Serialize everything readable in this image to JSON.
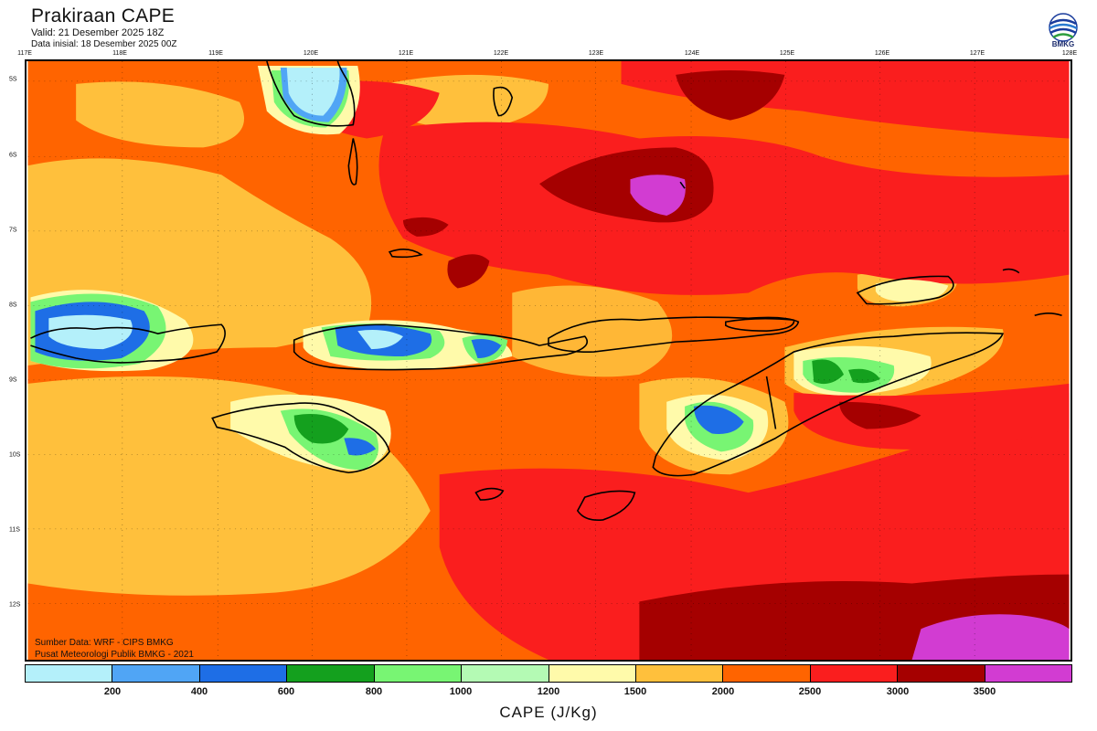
{
  "header": {
    "title": "Prakiraan CAPE",
    "valid": "Valid: 21 Desember 2025 18Z",
    "init": "Data inisial: 18 Desember 2025 00Z",
    "logo_text": "BMKG"
  },
  "axes": {
    "lon_labels": [
      "117E",
      "118E",
      "119E",
      "120E",
      "121E",
      "122E",
      "123E",
      "124E",
      "125E",
      "126E",
      "127E",
      "128E"
    ],
    "lat_labels": [
      "5S",
      "6S",
      "7S",
      "8S",
      "9S",
      "10S",
      "11S",
      "12S"
    ]
  },
  "credits": {
    "line1": "Sumber Data: WRF - CIPS BMKG",
    "line2": "Pusat Meteorologi Publik BMKG - 2021"
  },
  "legend": {
    "title": "CAPE (J/Kg)",
    "ticks": [
      "200",
      "400",
      "600",
      "800",
      "1000",
      "1200",
      "1500",
      "2000",
      "2500",
      "3000",
      "3500"
    ],
    "colors": [
      "#b4f0fa",
      "#50a5f5",
      "#1e6ee6",
      "#14a01e",
      "#78f573",
      "#b4fab4",
      "#fffaaa",
      "#ffc03c",
      "#ff6400",
      "#fa1e1e",
      "#a50000",
      "#d23cd2"
    ]
  },
  "map_colors": {
    "base_orange": "#ff6400",
    "red": "#fa1e1e",
    "dark_red": "#a50000",
    "magenta": "#d23cd2",
    "light_orange": "#ffc03c",
    "yellow": "#fffaaa",
    "pale_green": "#b4fab4",
    "green": "#78f573",
    "dark_green": "#14a01e",
    "blue": "#1e6ee6",
    "mid_blue": "#50a5f5",
    "light_blue": "#b4f0fa"
  }
}
